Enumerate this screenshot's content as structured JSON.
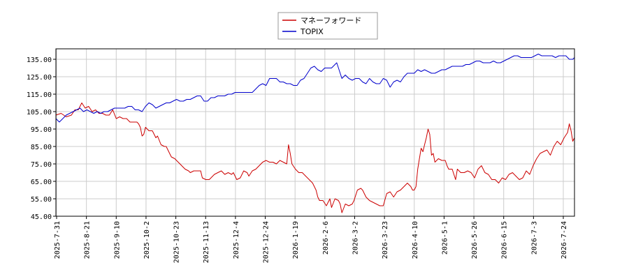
{
  "chart_data": {
    "type": "line",
    "title": "",
    "xlabel": "",
    "ylabel": "",
    "ylim": [
      45,
      141
    ],
    "yticks": [
      "45.00",
      "55.00",
      "65.00",
      "75.00",
      "85.00",
      "95.00",
      "105.00",
      "115.00",
      "125.00",
      "135.00"
    ],
    "ytick_values": [
      45,
      55,
      65,
      75,
      85,
      95,
      105,
      115,
      125,
      135
    ],
    "grid": true,
    "legend_position": "top-center",
    "xticks": [
      "2025-7-31",
      "2025-8-21",
      "2025-9-10",
      "2025-10-2",
      "2025-10-23",
      "2025-11-13",
      "2025-12-4",
      "2025-12-24",
      "2026-1-19",
      "2026-2-6",
      "2026-3-2",
      "2026-3-23",
      "2026-4-10",
      "2026-5-1",
      "2026-5-26",
      "2026-6-15",
      "2026-7-3",
      "2026-7-24"
    ],
    "series": [
      {
        "name": "マネーフォワード",
        "color": "#cc0000",
        "points": [
          [
            0,
            103
          ],
          [
            3,
            104
          ],
          [
            6,
            102
          ],
          [
            9,
            103
          ],
          [
            11,
            106
          ],
          [
            13,
            106
          ],
          [
            15,
            110
          ],
          [
            17,
            107
          ],
          [
            19,
            108
          ],
          [
            21,
            105
          ],
          [
            23,
            106
          ],
          [
            25,
            104
          ],
          [
            27,
            104
          ],
          [
            29,
            103
          ],
          [
            31,
            103
          ],
          [
            33,
            106
          ],
          [
            35,
            101
          ],
          [
            37,
            102
          ],
          [
            39,
            101
          ],
          [
            41,
            101
          ],
          [
            43,
            99
          ],
          [
            45,
            99
          ],
          [
            47,
            99
          ],
          [
            48,
            98
          ],
          [
            49,
            96
          ],
          [
            50,
            91
          ],
          [
            51,
            92
          ],
          [
            52,
            96
          ],
          [
            54,
            94
          ],
          [
            56,
            94
          ],
          [
            58,
            90
          ],
          [
            59,
            91
          ],
          [
            61,
            86
          ],
          [
            63,
            85
          ],
          [
            64,
            85
          ],
          [
            66,
            81
          ],
          [
            67,
            79
          ],
          [
            69,
            78
          ],
          [
            71,
            76
          ],
          [
            72,
            75
          ],
          [
            74,
            73
          ],
          [
            75,
            72
          ],
          [
            77,
            71
          ],
          [
            78,
            70
          ],
          [
            80,
            71
          ],
          [
            82,
            71
          ],
          [
            84,
            71
          ],
          [
            85,
            67
          ],
          [
            87,
            66
          ],
          [
            89,
            66
          ],
          [
            90,
            67
          ],
          [
            92,
            69
          ],
          [
            94,
            70
          ],
          [
            96,
            71
          ],
          [
            98,
            69
          ],
          [
            100,
            70
          ],
          [
            102,
            69
          ],
          [
            103,
            70
          ],
          [
            105,
            66
          ],
          [
            107,
            67
          ],
          [
            109,
            71
          ],
          [
            111,
            70
          ],
          [
            112,
            68
          ],
          [
            114,
            71
          ],
          [
            116,
            72
          ],
          [
            118,
            74
          ],
          [
            120,
            76
          ],
          [
            122,
            77
          ],
          [
            124,
            76
          ],
          [
            126,
            76
          ],
          [
            128,
            75
          ],
          [
            130,
            77
          ],
          [
            132,
            76
          ],
          [
            134,
            75
          ],
          [
            135,
            86
          ],
          [
            136,
            81
          ],
          [
            137,
            75
          ],
          [
            139,
            72
          ],
          [
            141,
            70
          ],
          [
            143,
            70
          ],
          [
            145,
            68
          ],
          [
            147,
            66
          ],
          [
            149,
            64
          ],
          [
            151,
            60
          ],
          [
            152,
            56
          ],
          [
            153,
            54
          ],
          [
            155,
            54
          ],
          [
            157,
            51
          ],
          [
            159,
            55
          ],
          [
            160,
            50
          ],
          [
            162,
            55
          ],
          [
            164,
            54
          ],
          [
            165,
            52
          ],
          [
            166,
            47
          ],
          [
            168,
            52
          ],
          [
            170,
            51
          ],
          [
            172,
            52
          ],
          [
            173,
            54
          ],
          [
            175,
            60
          ],
          [
            177,
            61
          ],
          [
            178,
            60
          ],
          [
            180,
            56
          ],
          [
            182,
            54
          ],
          [
            184,
            53
          ],
          [
            186,
            52
          ],
          [
            188,
            51
          ],
          [
            190,
            51
          ],
          [
            192,
            58
          ],
          [
            194,
            59
          ],
          [
            196,
            56
          ],
          [
            198,
            59
          ],
          [
            200,
            60
          ],
          [
            202,
            62
          ],
          [
            204,
            64
          ],
          [
            206,
            62
          ],
          [
            207,
            60
          ],
          [
            208,
            60
          ],
          [
            209,
            62
          ],
          [
            210,
            72
          ],
          [
            211,
            78
          ],
          [
            212,
            84
          ],
          [
            213,
            82
          ],
          [
            214,
            86
          ],
          [
            215,
            90
          ],
          [
            216,
            95
          ],
          [
            217,
            92
          ],
          [
            218,
            80
          ],
          [
            219,
            81
          ],
          [
            220,
            76
          ],
          [
            222,
            78
          ],
          [
            224,
            77
          ],
          [
            226,
            77
          ],
          [
            227,
            74
          ],
          [
            228,
            72
          ],
          [
            230,
            72
          ],
          [
            232,
            66
          ],
          [
            233,
            72
          ],
          [
            235,
            70
          ],
          [
            237,
            70
          ],
          [
            239,
            71
          ],
          [
            241,
            70
          ],
          [
            243,
            67
          ],
          [
            245,
            72
          ],
          [
            247,
            74
          ],
          [
            249,
            70
          ],
          [
            251,
            69
          ],
          [
            253,
            66
          ],
          [
            255,
            66
          ],
          [
            257,
            64
          ],
          [
            259,
            67
          ],
          [
            261,
            66
          ],
          [
            263,
            69
          ],
          [
            265,
            70
          ],
          [
            267,
            68
          ],
          [
            269,
            66
          ],
          [
            271,
            67
          ],
          [
            273,
            71
          ],
          [
            275,
            69
          ],
          [
            277,
            74
          ],
          [
            279,
            78
          ],
          [
            281,
            81
          ],
          [
            283,
            82
          ],
          [
            285,
            83
          ],
          [
            287,
            80
          ],
          [
            289,
            85
          ],
          [
            291,
            88
          ],
          [
            293,
            86
          ],
          [
            295,
            90
          ],
          [
            297,
            93
          ],
          [
            298,
            98
          ],
          [
            299,
            94
          ],
          [
            300,
            88
          ],
          [
            301,
            90
          ]
        ]
      },
      {
        "name": "TOPIX",
        "color": "#0000cc",
        "points": [
          [
            0,
            101
          ],
          [
            2,
            99
          ],
          [
            4,
            101
          ],
          [
            6,
            103
          ],
          [
            8,
            104
          ],
          [
            10,
            105
          ],
          [
            12,
            106
          ],
          [
            14,
            107
          ],
          [
            16,
            105
          ],
          [
            18,
            106
          ],
          [
            20,
            105
          ],
          [
            22,
            104
          ],
          [
            24,
            105
          ],
          [
            26,
            104
          ],
          [
            28,
            105
          ],
          [
            30,
            105
          ],
          [
            32,
            106
          ],
          [
            34,
            107
          ],
          [
            36,
            107
          ],
          [
            38,
            107
          ],
          [
            40,
            107
          ],
          [
            42,
            108
          ],
          [
            44,
            108
          ],
          [
            46,
            106
          ],
          [
            48,
            106
          ],
          [
            50,
            105
          ],
          [
            52,
            108
          ],
          [
            54,
            110
          ],
          [
            56,
            109
          ],
          [
            58,
            107
          ],
          [
            60,
            108
          ],
          [
            62,
            109
          ],
          [
            64,
            110
          ],
          [
            66,
            110
          ],
          [
            68,
            111
          ],
          [
            70,
            112
          ],
          [
            72,
            111
          ],
          [
            74,
            111
          ],
          [
            76,
            112
          ],
          [
            78,
            112
          ],
          [
            80,
            113
          ],
          [
            82,
            114
          ],
          [
            84,
            114
          ],
          [
            86,
            111
          ],
          [
            88,
            111
          ],
          [
            90,
            113
          ],
          [
            92,
            113
          ],
          [
            94,
            114
          ],
          [
            96,
            114
          ],
          [
            98,
            114
          ],
          [
            100,
            115
          ],
          [
            102,
            115
          ],
          [
            104,
            116
          ],
          [
            106,
            116
          ],
          [
            108,
            116
          ],
          [
            110,
            116
          ],
          [
            112,
            116
          ],
          [
            114,
            116
          ],
          [
            116,
            118
          ],
          [
            118,
            120
          ],
          [
            120,
            121
          ],
          [
            122,
            120
          ],
          [
            124,
            124
          ],
          [
            126,
            124
          ],
          [
            128,
            124
          ],
          [
            130,
            122
          ],
          [
            132,
            122
          ],
          [
            134,
            121
          ],
          [
            136,
            121
          ],
          [
            138,
            120
          ],
          [
            140,
            120
          ],
          [
            142,
            123
          ],
          [
            144,
            124
          ],
          [
            146,
            127
          ],
          [
            148,
            130
          ],
          [
            150,
            131
          ],
          [
            152,
            129
          ],
          [
            154,
            128
          ],
          [
            156,
            130
          ],
          [
            158,
            130
          ],
          [
            160,
            130
          ],
          [
            162,
            132
          ],
          [
            163,
            133
          ],
          [
            164,
            130
          ],
          [
            166,
            124
          ],
          [
            168,
            126
          ],
          [
            170,
            124
          ],
          [
            172,
            123
          ],
          [
            174,
            124
          ],
          [
            176,
            124
          ],
          [
            178,
            122
          ],
          [
            180,
            121
          ],
          [
            182,
            124
          ],
          [
            184,
            122
          ],
          [
            186,
            121
          ],
          [
            188,
            121
          ],
          [
            190,
            124
          ],
          [
            192,
            123
          ],
          [
            194,
            119
          ],
          [
            196,
            122
          ],
          [
            198,
            123
          ],
          [
            200,
            122
          ],
          [
            202,
            125
          ],
          [
            204,
            127
          ],
          [
            206,
            127
          ],
          [
            208,
            127
          ],
          [
            210,
            129
          ],
          [
            212,
            128
          ],
          [
            214,
            129
          ],
          [
            216,
            128
          ],
          [
            218,
            127
          ],
          [
            220,
            127
          ],
          [
            222,
            128
          ],
          [
            224,
            129
          ],
          [
            226,
            129
          ],
          [
            228,
            130
          ],
          [
            230,
            131
          ],
          [
            232,
            131
          ],
          [
            234,
            131
          ],
          [
            236,
            131
          ],
          [
            238,
            132
          ],
          [
            240,
            132
          ],
          [
            242,
            133
          ],
          [
            244,
            134
          ],
          [
            246,
            134
          ],
          [
            248,
            133
          ],
          [
            250,
            133
          ],
          [
            252,
            133
          ],
          [
            254,
            134
          ],
          [
            256,
            133
          ],
          [
            258,
            133
          ],
          [
            260,
            134
          ],
          [
            262,
            135
          ],
          [
            264,
            136
          ],
          [
            266,
            137
          ],
          [
            268,
            137
          ],
          [
            270,
            136
          ],
          [
            272,
            136
          ],
          [
            274,
            136
          ],
          [
            276,
            136
          ],
          [
            278,
            137
          ],
          [
            280,
            138
          ],
          [
            282,
            137
          ],
          [
            284,
            137
          ],
          [
            286,
            137
          ],
          [
            288,
            137
          ],
          [
            290,
            136
          ],
          [
            292,
            137
          ],
          [
            294,
            137
          ],
          [
            296,
            137
          ],
          [
            298,
            135
          ],
          [
            300,
            135
          ],
          [
            301,
            136
          ]
        ]
      }
    ]
  }
}
